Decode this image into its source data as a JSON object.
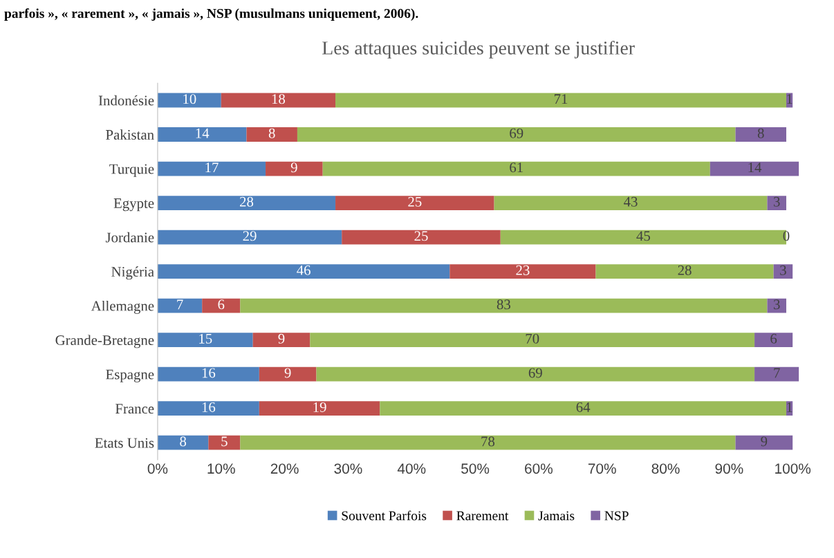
{
  "chart_data": {
    "type": "bar",
    "orientation": "horizontal",
    "stacked": true,
    "title": "Les attaques suicides peuvent se justifier",
    "annotations": [
      "parfois », « rarement », « jamais », NSP (musulmans uniquement, 2006)."
    ],
    "categories": [
      "Indonésie",
      "Pakistan",
      "Turquie",
      "Egypte",
      "Jordanie",
      "Nigéria",
      "Allemagne",
      "Grande-Bretagne",
      "Espagne",
      "France",
      "Etats Unis"
    ],
    "series": [
      {
        "name": "Souvent Parfois",
        "color": "#4f81bd",
        "values": [
          10,
          14,
          17,
          28,
          29,
          46,
          7,
          15,
          16,
          16,
          8
        ]
      },
      {
        "name": "Rarement",
        "color": "#c0504d",
        "values": [
          18,
          8,
          9,
          25,
          25,
          23,
          6,
          9,
          9,
          19,
          5
        ]
      },
      {
        "name": "Jamais",
        "color": "#9bbb59",
        "values": [
          71,
          69,
          61,
          43,
          45,
          28,
          83,
          70,
          69,
          64,
          78
        ]
      },
      {
        "name": "NSP",
        "color": "#8064a2",
        "values": [
          1,
          8,
          14,
          3,
          0,
          3,
          3,
          6,
          7,
          1,
          9
        ]
      }
    ],
    "xlim": [
      0,
      101
    ],
    "xticks": [
      {
        "value": 0,
        "label": "0%"
      },
      {
        "value": 10,
        "label": "10%"
      },
      {
        "value": 20,
        "label": "20%"
      },
      {
        "value": 30,
        "label": "30%"
      },
      {
        "value": 40,
        "label": "40%"
      },
      {
        "value": 50,
        "label": "50%"
      },
      {
        "value": 60,
        "label": "60%"
      },
      {
        "value": 70,
        "label": "70%"
      },
      {
        "value": 80,
        "label": "80%"
      },
      {
        "value": 90,
        "label": "90%"
      },
      {
        "value": 100,
        "label": "100%"
      }
    ],
    "data_labels": true,
    "legend": "bottom",
    "grid": false
  }
}
